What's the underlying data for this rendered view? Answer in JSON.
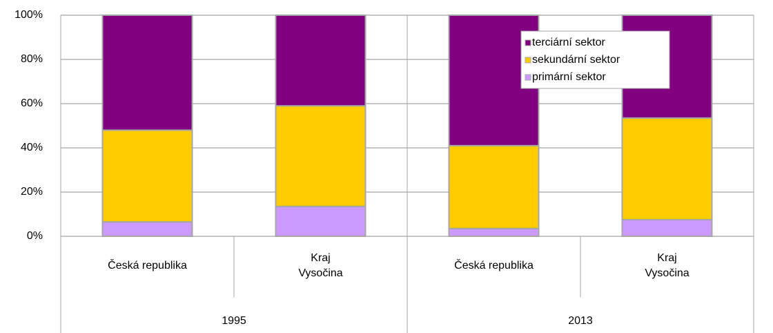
{
  "chart_data": {
    "type": "stacked_bar",
    "groups": [
      {
        "label": "1995",
        "categories": [
          "Česká republika",
          "Kraj\nVysočina"
        ]
      },
      {
        "label": "2013",
        "categories": [
          "Česká republika",
          "Kraj\nVysočina"
        ]
      }
    ],
    "series": [
      {
        "name": "primární sektor",
        "color": "#cc99ff",
        "values": [
          6.5,
          13.5,
          3.5,
          7.5
        ]
      },
      {
        "name": "sekundární sektor",
        "color": "#ffcc00",
        "values": [
          41.5,
          45.5,
          37.5,
          46
        ]
      },
      {
        "name": "terciární sektor",
        "color": "#800080",
        "values": [
          52,
          41,
          59,
          46.5
        ]
      }
    ],
    "ylim": [
      0,
      100
    ],
    "yticks": [
      {
        "value": 0,
        "label": "0%"
      },
      {
        "value": 20,
        "label": "20%"
      },
      {
        "value": 40,
        "label": "40%"
      },
      {
        "value": 60,
        "label": "60%"
      },
      {
        "value": 80,
        "label": "80%"
      },
      {
        "value": 100,
        "label": "100%"
      }
    ],
    "grid": true,
    "legend": "top-right"
  }
}
